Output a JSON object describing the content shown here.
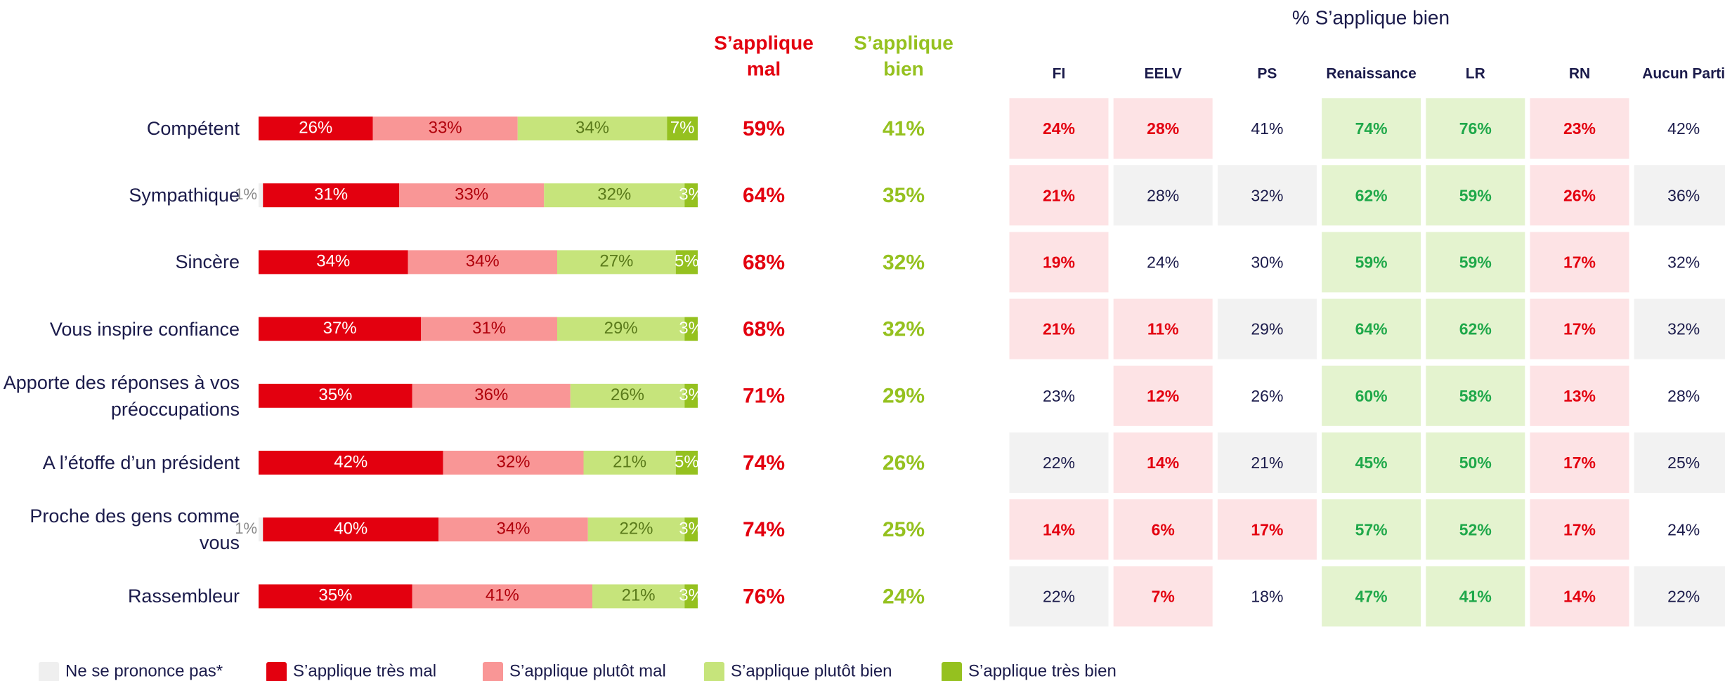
{
  "chart_data": {
    "type": "bar",
    "stacked": true,
    "orientation": "horizontal",
    "categories": [
      "Compétent",
      "Sympathique",
      "Sincère",
      "Vous inspire confiance",
      "Apporte des réponses à vos préoccupations",
      "A l’étoffe d’un président",
      "Proche des gens comme vous",
      "Rassembleur"
    ],
    "series": [
      {
        "name": "Ne se prononce pas*",
        "color": "#efefef",
        "label_color": "#8a8a8a",
        "values": [
          null,
          1,
          null,
          null,
          null,
          null,
          1,
          null
        ],
        "value_labels": [
          null,
          "1%",
          null,
          null,
          null,
          null,
          "1%",
          null
        ]
      },
      {
        "name": "S’applique très mal",
        "color": "#e3000f",
        "label_color": "#ffffff",
        "values": [
          26,
          31,
          34,
          37,
          35,
          42,
          40,
          35
        ],
        "value_labels": [
          "26%",
          "31%",
          "34%",
          "37%",
          "35%",
          "42%",
          "40%",
          "35%"
        ]
      },
      {
        "name": "S’applique plutôt mal",
        "color": "#f99696",
        "label_color": "#b0000b",
        "values": [
          33,
          33,
          34,
          31,
          36,
          32,
          34,
          41
        ],
        "value_labels": [
          "33%",
          "33%",
          "34%",
          "31%",
          "36%",
          "32%",
          "34%",
          "41%"
        ]
      },
      {
        "name": "S’applique plutôt bien",
        "color": "#c6e47b",
        "label_color": "#5a7a1a",
        "values": [
          34,
          32,
          27,
          29,
          26,
          21,
          22,
          21
        ],
        "value_labels": [
          "34%",
          "32%",
          "27%",
          "29%",
          "26%",
          "21%",
          "22%",
          "21%"
        ]
      },
      {
        "name": "S’applique très bien",
        "color": "#95c11f",
        "label_color": "#ffffff",
        "values": [
          7,
          3,
          5,
          3,
          3,
          5,
          3,
          3
        ],
        "value_labels": [
          "7%",
          "3%",
          "5%",
          "3%",
          "3%",
          "5%",
          "3%",
          "3%"
        ]
      }
    ]
  },
  "summary": [
    {
      "header": [
        "S’applique",
        "mal"
      ],
      "color": "#e3000f",
      "values": [
        59,
        64,
        68,
        68,
        71,
        74,
        74,
        76
      ],
      "value_labels": [
        "59%",
        "64%",
        "68%",
        "68%",
        "71%",
        "74%",
        "74%",
        "76%"
      ]
    },
    {
      "header": [
        "S’applique",
        "bien"
      ],
      "color": "#95c11f",
      "values": [
        41,
        35,
        32,
        32,
        29,
        26,
        25,
        24
      ],
      "value_labels": [
        "41%",
        "35%",
        "32%",
        "32%",
        "29%",
        "26%",
        "25%",
        "24%"
      ]
    }
  ],
  "party_table": {
    "title": "% S’applique bien",
    "columns": [
      "FI",
      "EELV",
      "PS",
      "Renaissance",
      "LR",
      "RN",
      "Aucun Parti"
    ],
    "rows": [
      [
        "24%",
        "28%",
        "41%",
        "74%",
        "76%",
        "23%",
        "42%"
      ],
      [
        "21%",
        "28%",
        "32%",
        "62%",
        "59%",
        "26%",
        "36%"
      ],
      [
        "19%",
        "24%",
        "30%",
        "59%",
        "59%",
        "17%",
        "32%"
      ],
      [
        "21%",
        "11%",
        "29%",
        "64%",
        "62%",
        "17%",
        "32%"
      ],
      [
        "23%",
        "12%",
        "26%",
        "60%",
        "58%",
        "13%",
        "28%"
      ],
      [
        "22%",
        "14%",
        "21%",
        "45%",
        "50%",
        "17%",
        "25%"
      ],
      [
        "14%",
        "6%",
        "17%",
        "57%",
        "52%",
        "17%",
        "24%"
      ],
      [
        "22%",
        "7%",
        "18%",
        "47%",
        "41%",
        "14%",
        "22%"
      ]
    ],
    "cell_colors": [
      [
        "#fde3e5",
        "#fde3e5",
        "#ffffff",
        "#e4f3cf",
        "#e4f3cf",
        "#fde3e5",
        "#ffffff"
      ],
      [
        "#fde3e5",
        "#f2f2f2",
        "#f2f2f2",
        "#e4f3cf",
        "#e4f3cf",
        "#fde3e5",
        "#f2f2f2"
      ],
      [
        "#fde3e5",
        "#ffffff",
        "#ffffff",
        "#e4f3cf",
        "#e4f3cf",
        "#fde3e5",
        "#ffffff"
      ],
      [
        "#fde3e5",
        "#fde3e5",
        "#f2f2f2",
        "#e4f3cf",
        "#e4f3cf",
        "#fde3e5",
        "#f2f2f2"
      ],
      [
        "#ffffff",
        "#fde3e5",
        "#ffffff",
        "#e4f3cf",
        "#e4f3cf",
        "#fde3e5",
        "#ffffff"
      ],
      [
        "#f2f2f2",
        "#fde3e5",
        "#f2f2f2",
        "#e4f3cf",
        "#e4f3cf",
        "#fde3e5",
        "#f2f2f2"
      ],
      [
        "#fde3e5",
        "#fde3e5",
        "#fde3e5",
        "#e4f3cf",
        "#e4f3cf",
        "#fde3e5",
        "#ffffff"
      ],
      [
        "#f2f2f2",
        "#fde3e5",
        "#ffffff",
        "#e4f3cf",
        "#e4f3cf",
        "#fde3e5",
        "#f2f2f2"
      ]
    ],
    "text_styles": {
      "#fde3e5": {
        "color": "#e3000f",
        "weight": "bold"
      },
      "#e4f3cf": {
        "color": "#1fa84a",
        "weight": "bold"
      },
      "#f2f2f2": {
        "color": "#1b1b4b",
        "weight": "normal"
      },
      "#ffffff": {
        "color": "#1b1b4b",
        "weight": "normal"
      }
    }
  }
}
